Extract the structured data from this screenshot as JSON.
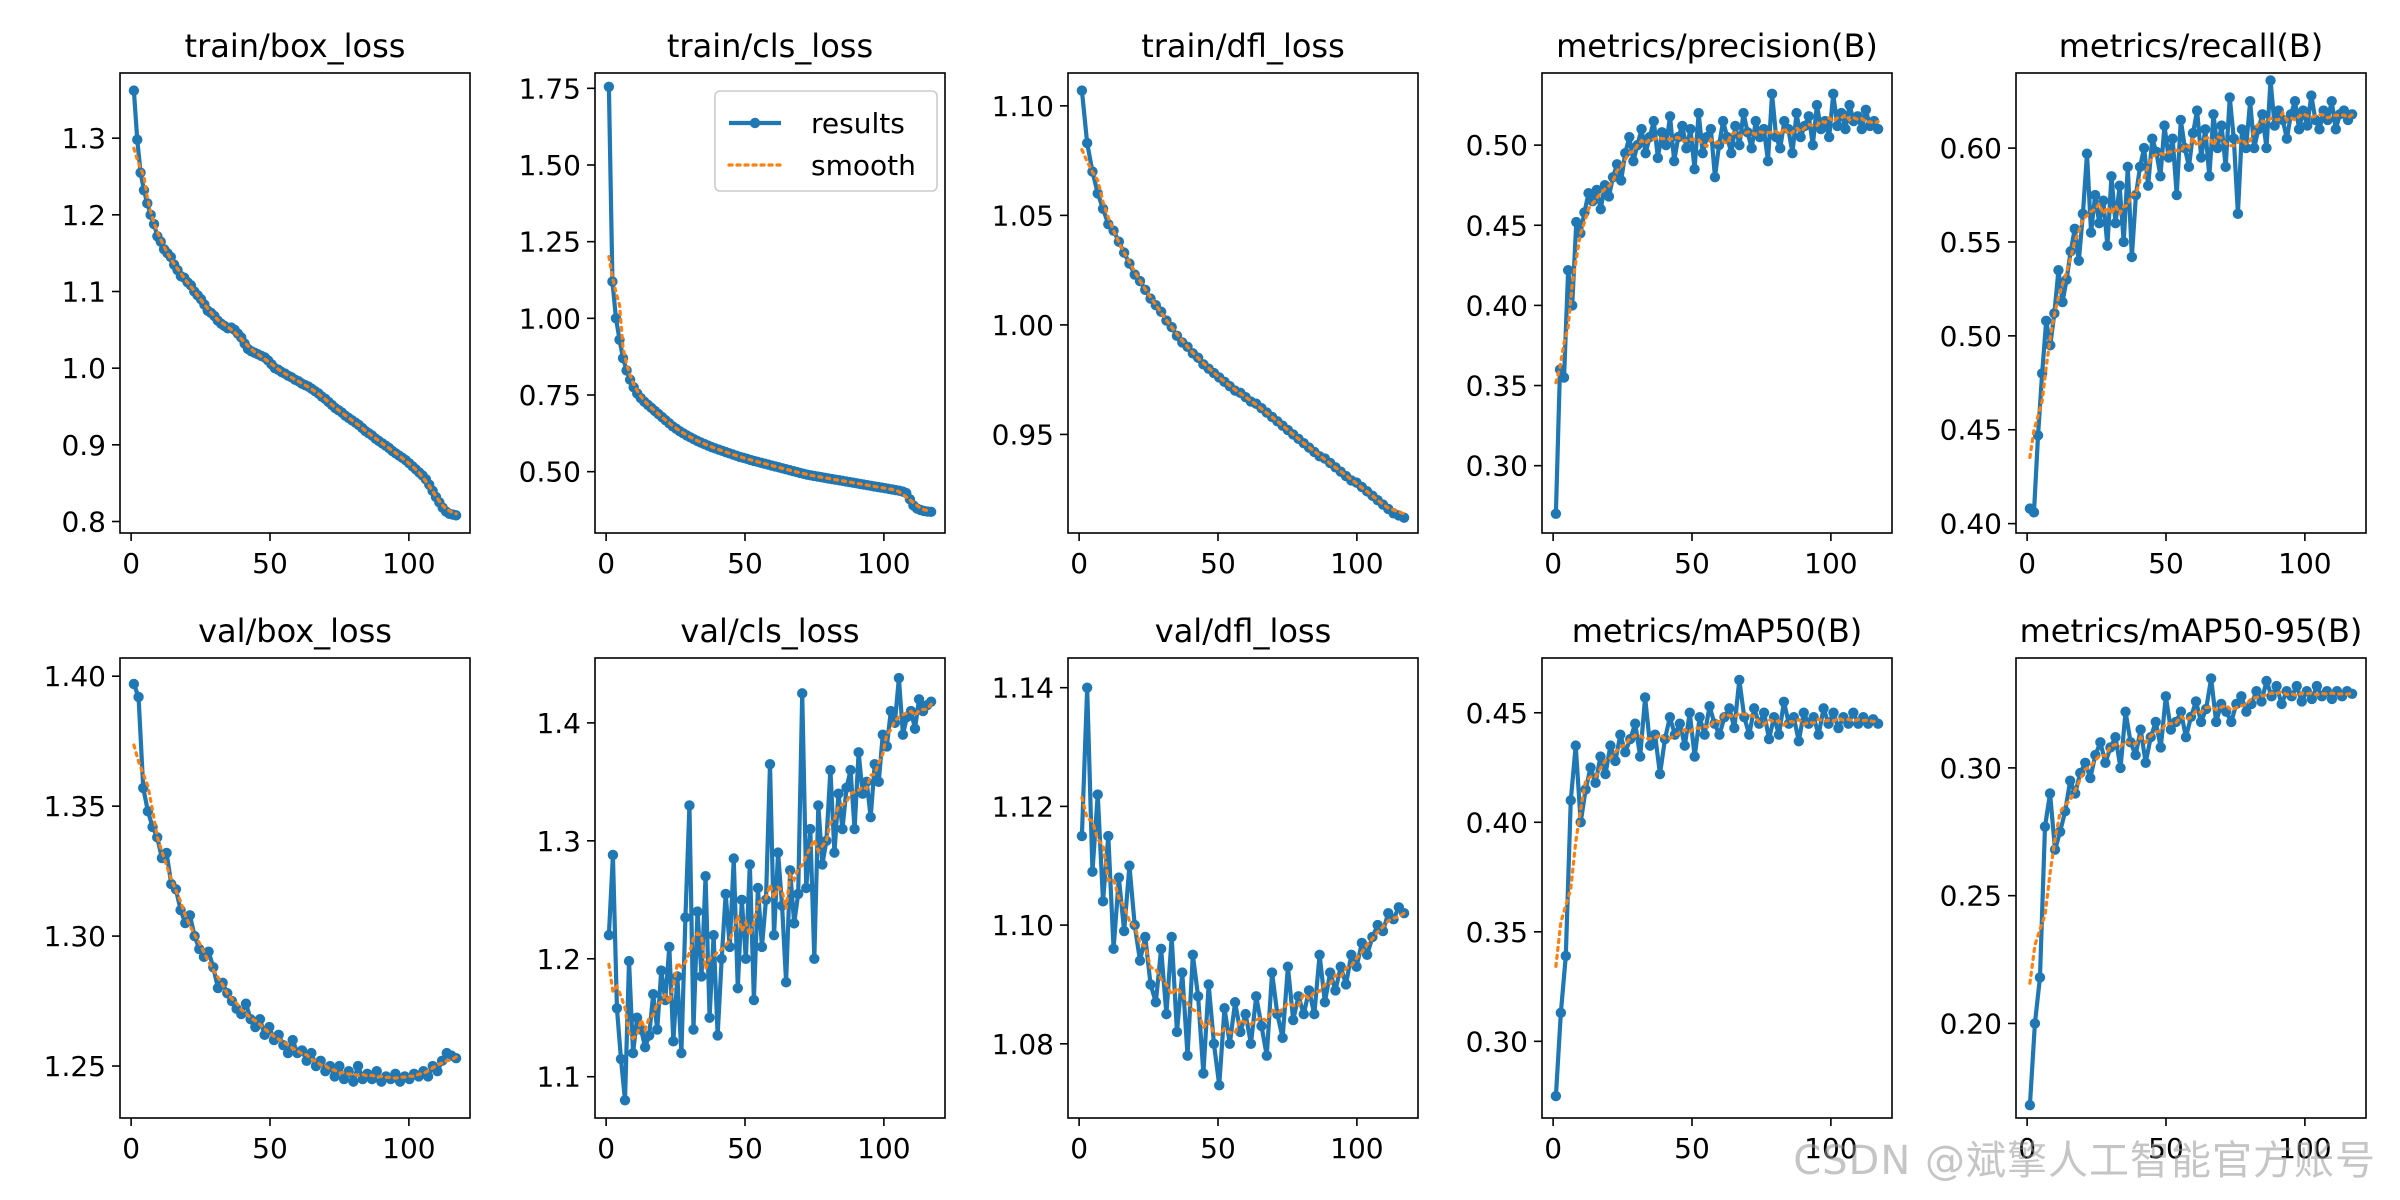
{
  "figure": {
    "watermark": "CSDN @斌擎人工智能官方账号",
    "legend": {
      "results_label": "results",
      "smooth_label": "smooth",
      "placement": "top-right (train/cls_loss)"
    },
    "colors": {
      "results": "#1f77b4",
      "smooth": "#ff7f0e",
      "axes": "#000000"
    }
  },
  "chart_data": [
    {
      "type": "line",
      "title": "train/box_loss",
      "xlim": [
        -4,
        122
      ],
      "ylim": [
        0.785,
        1.385
      ],
      "xticks": [
        0,
        50,
        100
      ],
      "yticks": [
        0.8,
        0.9,
        1.0,
        1.1,
        1.2,
        1.3
      ],
      "ytick_labels": [
        "0.8",
        "0.9",
        "1.0",
        "1.1",
        "1.2",
        "1.3"
      ],
      "x_last": 117,
      "series": [
        {
          "name": "results",
          "values": [
            1.362,
            1.298,
            1.255,
            1.232,
            1.215,
            1.2,
            1.188,
            1.172,
            1.165,
            1.155,
            1.15,
            1.145,
            1.135,
            1.128,
            1.12,
            1.118,
            1.112,
            1.108,
            1.1,
            1.095,
            1.09,
            1.083,
            1.075,
            1.072,
            1.068,
            1.062,
            1.058,
            1.055,
            1.052,
            1.053,
            1.05,
            1.045,
            1.04,
            1.032,
            1.025,
            1.022,
            1.02,
            1.018,
            1.016,
            1.014,
            1.01,
            1.005,
            1.0,
            0.998,
            0.995,
            0.993,
            0.99,
            0.988,
            0.985,
            0.983,
            0.98,
            0.978,
            0.976,
            0.973,
            0.97,
            0.967,
            0.963,
            0.96,
            0.956,
            0.952,
            0.948,
            0.945,
            0.942,
            0.938,
            0.935,
            0.932,
            0.929,
            0.926,
            0.922,
            0.918,
            0.915,
            0.912,
            0.908,
            0.905,
            0.902,
            0.899,
            0.896,
            0.892,
            0.889,
            0.886,
            0.883,
            0.88,
            0.876,
            0.872,
            0.868,
            0.864,
            0.86,
            0.855,
            0.848,
            0.84,
            0.832,
            0.825,
            0.818,
            0.813,
            0.81,
            0.809,
            0.808
          ]
        }
      ]
    },
    {
      "type": "line",
      "title": "train/cls_loss",
      "xlim": [
        -4,
        122
      ],
      "ylim": [
        0.3,
        1.8
      ],
      "xticks": [
        0,
        50,
        100
      ],
      "yticks": [
        0.5,
        0.75,
        1.0,
        1.25,
        1.5,
        1.75
      ],
      "ytick_labels": [
        "0.50",
        "0.75",
        "1.00",
        "1.25",
        "1.50",
        "1.75"
      ],
      "x_last": 117,
      "legend": true,
      "series": [
        {
          "name": "results",
          "values": [
            1.755,
            1.12,
            1.0,
            0.93,
            0.87,
            0.83,
            0.8,
            0.775,
            0.755,
            0.74,
            0.728,
            0.718,
            0.708,
            0.698,
            0.688,
            0.678,
            0.668,
            0.658,
            0.648,
            0.64,
            0.632,
            0.625,
            0.618,
            0.612,
            0.606,
            0.6,
            0.595,
            0.59,
            0.585,
            0.58,
            0.576,
            0.572,
            0.568,
            0.564,
            0.56,
            0.556,
            0.552,
            0.548,
            0.545,
            0.542,
            0.538,
            0.535,
            0.532,
            0.529,
            0.526,
            0.523,
            0.52,
            0.517,
            0.514,
            0.511,
            0.508,
            0.505,
            0.502,
            0.499,
            0.496,
            0.493,
            0.49,
            0.488,
            0.486,
            0.484,
            0.482,
            0.48,
            0.478,
            0.476,
            0.474,
            0.472,
            0.47,
            0.468,
            0.466,
            0.464,
            0.462,
            0.46,
            0.458,
            0.456,
            0.454,
            0.452,
            0.45,
            0.448,
            0.446,
            0.444,
            0.442,
            0.44,
            0.438,
            0.435,
            0.43,
            0.41,
            0.39,
            0.38,
            0.375,
            0.372,
            0.37,
            0.369
          ]
        }
      ]
    },
    {
      "type": "line",
      "title": "train/dfl_loss",
      "xlim": [
        -4,
        122
      ],
      "ylim": [
        0.905,
        1.115
      ],
      "xticks": [
        0,
        50,
        100
      ],
      "yticks": [
        0.95,
        1.0,
        1.05,
        1.1
      ],
      "ytick_labels": [
        "0.95",
        "1.00",
        "1.05",
        "1.10"
      ],
      "x_last": 117,
      "series": [
        {
          "name": "results",
          "values": [
            1.107,
            1.083,
            1.07,
            1.06,
            1.053,
            1.046,
            1.043,
            1.038,
            1.033,
            1.028,
            1.023,
            1.02,
            1.016,
            1.012,
            1.009,
            1.006,
            1.002,
            0.999,
            0.995,
            0.992,
            0.99,
            0.987,
            0.985,
            0.982,
            0.98,
            0.978,
            0.976,
            0.974,
            0.972,
            0.97,
            0.969,
            0.967,
            0.965,
            0.964,
            0.962,
            0.96,
            0.958,
            0.956,
            0.954,
            0.952,
            0.95,
            0.948,
            0.946,
            0.944,
            0.942,
            0.94,
            0.939,
            0.937,
            0.935,
            0.933,
            0.931,
            0.929,
            0.928,
            0.926,
            0.924,
            0.922,
            0.92,
            0.918,
            0.916,
            0.914,
            0.913,
            0.912
          ]
        }
      ]
    },
    {
      "type": "line",
      "title": "metrics/precision(B)",
      "xlim": [
        -4,
        122
      ],
      "ylim": [
        0.258,
        0.545
      ],
      "xticks": [
        0,
        50,
        100
      ],
      "yticks": [
        0.3,
        0.35,
        0.4,
        0.45,
        0.5
      ],
      "ytick_labels": [
        "0.30",
        "0.35",
        "0.40",
        "0.45",
        "0.50"
      ],
      "x_last": 117,
      "series": [
        {
          "name": "results",
          "values": [
            0.27,
            0.36,
            0.355,
            0.422,
            0.4,
            0.452,
            0.445,
            0.458,
            0.47,
            0.465,
            0.472,
            0.46,
            0.475,
            0.468,
            0.48,
            0.488,
            0.478,
            0.495,
            0.505,
            0.49,
            0.5,
            0.51,
            0.495,
            0.505,
            0.515,
            0.492,
            0.508,
            0.5,
            0.518,
            0.49,
            0.505,
            0.512,
            0.498,
            0.51,
            0.485,
            0.52,
            0.495,
            0.505,
            0.51,
            0.48,
            0.5,
            0.515,
            0.505,
            0.495,
            0.512,
            0.5,
            0.52,
            0.508,
            0.498,
            0.515,
            0.505,
            0.51,
            0.49,
            0.532,
            0.505,
            0.498,
            0.515,
            0.51,
            0.495,
            0.52,
            0.505,
            0.512,
            0.518,
            0.5,
            0.525,
            0.51,
            0.515,
            0.505,
            0.532,
            0.512,
            0.52,
            0.51,
            0.525,
            0.515,
            0.518,
            0.51,
            0.522,
            0.512,
            0.515,
            0.51
          ]
        }
      ]
    },
    {
      "type": "line",
      "title": "metrics/recall(B)",
      "xlim": [
        -4,
        122
      ],
      "ylim": [
        0.395,
        0.64
      ],
      "xticks": [
        0,
        50,
        100
      ],
      "yticks": [
        0.4,
        0.45,
        0.5,
        0.55,
        0.6
      ],
      "ytick_labels": [
        "0.40",
        "0.45",
        "0.50",
        "0.55",
        "0.60"
      ],
      "x_last": 117,
      "series": [
        {
          "name": "results",
          "values": [
            0.408,
            0.406,
            0.447,
            0.48,
            0.508,
            0.495,
            0.512,
            0.535,
            0.518,
            0.53,
            0.545,
            0.557,
            0.54,
            0.565,
            0.597,
            0.555,
            0.575,
            0.56,
            0.572,
            0.548,
            0.585,
            0.56,
            0.58,
            0.55,
            0.59,
            0.542,
            0.575,
            0.59,
            0.6,
            0.58,
            0.605,
            0.598,
            0.585,
            0.612,
            0.595,
            0.605,
            0.575,
            0.615,
            0.6,
            0.59,
            0.608,
            0.62,
            0.595,
            0.61,
            0.585,
            0.618,
            0.6,
            0.612,
            0.59,
            0.627,
            0.605,
            0.565,
            0.61,
            0.6,
            0.625,
            0.6,
            0.61,
            0.618,
            0.6,
            0.636,
            0.612,
            0.62,
            0.615,
            0.605,
            0.618,
            0.625,
            0.61,
            0.62,
            0.612,
            0.628,
            0.615,
            0.61,
            0.62,
            0.615,
            0.625,
            0.61,
            0.618,
            0.62,
            0.615,
            0.618
          ]
        }
      ]
    },
    {
      "type": "line",
      "title": "val/box_loss",
      "xlim": [
        -4,
        122
      ],
      "ylim": [
        1.23,
        1.407
      ],
      "xticks": [
        0,
        50,
        100
      ],
      "yticks": [
        1.25,
        1.3,
        1.35,
        1.4
      ],
      "ytick_labels": [
        "1.25",
        "1.30",
        "1.35",
        "1.40"
      ],
      "x_last": 117,
      "series": [
        {
          "name": "results",
          "values": [
            1.397,
            1.392,
            1.357,
            1.348,
            1.342,
            1.338,
            1.33,
            1.332,
            1.32,
            1.318,
            1.31,
            1.305,
            1.308,
            1.3,
            1.295,
            1.292,
            1.294,
            1.288,
            1.28,
            1.282,
            1.278,
            1.275,
            1.272,
            1.27,
            1.274,
            1.268,
            1.265,
            1.268,
            1.262,
            1.265,
            1.26,
            1.262,
            1.258,
            1.255,
            1.26,
            1.255,
            1.256,
            1.252,
            1.255,
            1.25,
            1.252,
            1.248,
            1.25,
            1.246,
            1.25,
            1.245,
            1.248,
            1.244,
            1.25,
            1.245,
            1.247,
            1.245,
            1.248,
            1.244,
            1.246,
            1.245,
            1.247,
            1.244,
            1.246,
            1.245,
            1.247,
            1.246,
            1.248,
            1.246,
            1.25,
            1.248,
            1.252,
            1.255,
            1.254,
            1.253
          ]
        }
      ]
    },
    {
      "type": "line",
      "title": "val/cls_loss",
      "xlim": [
        -4,
        122
      ],
      "ylim": [
        1.065,
        1.455
      ],
      "xticks": [
        0,
        50,
        100
      ],
      "yticks": [
        1.1,
        1.2,
        1.3,
        1.4
      ],
      "ytick_labels": [
        "1.1",
        "1.2",
        "1.3",
        "1.4"
      ],
      "x_last": 117,
      "series": [
        {
          "name": "results",
          "values": [
            1.22,
            1.288,
            1.158,
            1.115,
            1.08,
            1.198,
            1.12,
            1.15,
            1.14,
            1.125,
            1.135,
            1.17,
            1.14,
            1.19,
            1.165,
            1.21,
            1.13,
            1.185,
            1.12,
            1.235,
            1.33,
            1.14,
            1.24,
            1.185,
            1.27,
            1.15,
            1.22,
            1.135,
            1.2,
            1.255,
            1.21,
            1.285,
            1.175,
            1.25,
            1.2,
            1.28,
            1.165,
            1.26,
            1.21,
            1.25,
            1.365,
            1.22,
            1.29,
            1.245,
            1.18,
            1.275,
            1.23,
            1.255,
            1.425,
            1.26,
            1.31,
            1.2,
            1.33,
            1.28,
            1.3,
            1.36,
            1.29,
            1.34,
            1.31,
            1.345,
            1.36,
            1.31,
            1.375,
            1.34,
            1.35,
            1.32,
            1.365,
            1.35,
            1.39,
            1.38,
            1.41,
            1.4,
            1.438,
            1.39,
            1.405,
            1.41,
            1.395,
            1.42,
            1.41,
            1.415,
            1.418
          ]
        }
      ]
    },
    {
      "type": "line",
      "title": "val/dfl_loss",
      "xlim": [
        -4,
        122
      ],
      "ylim": [
        1.0675,
        1.145
      ],
      "xticks": [
        0,
        50,
        100
      ],
      "yticks": [
        1.08,
        1.1,
        1.12,
        1.14
      ],
      "ytick_labels": [
        "1.08",
        "1.10",
        "1.12",
        "1.14"
      ],
      "x_last": 117,
      "series": [
        {
          "name": "results",
          "values": [
            1.115,
            1.14,
            1.109,
            1.122,
            1.104,
            1.115,
            1.096,
            1.108,
            1.099,
            1.11,
            1.1,
            1.094,
            1.098,
            1.09,
            1.087,
            1.096,
            1.085,
            1.098,
            1.082,
            1.092,
            1.078,
            1.095,
            1.088,
            1.075,
            1.09,
            1.08,
            1.073,
            1.086,
            1.08,
            1.087,
            1.082,
            1.085,
            1.08,
            1.088,
            1.083,
            1.078,
            1.092,
            1.085,
            1.081,
            1.093,
            1.084,
            1.088,
            1.085,
            1.089,
            1.085,
            1.095,
            1.087,
            1.092,
            1.089,
            1.093,
            1.09,
            1.095,
            1.093,
            1.097,
            1.095,
            1.098,
            1.1,
            1.099,
            1.102,
            1.101,
            1.103,
            1.102
          ]
        }
      ]
    },
    {
      "type": "line",
      "title": "metrics/mAP50(B)",
      "xlim": [
        -4,
        122
      ],
      "ylim": [
        0.265,
        0.475
      ],
      "xticks": [
        0,
        50,
        100
      ],
      "yticks": [
        0.3,
        0.35,
        0.4,
        0.45
      ],
      "ytick_labels": [
        "0.30",
        "0.35",
        "0.40",
        "0.45"
      ],
      "x_last": 117,
      "series": [
        {
          "name": "results",
          "values": [
            0.275,
            0.313,
            0.339,
            0.41,
            0.435,
            0.4,
            0.415,
            0.425,
            0.418,
            0.43,
            0.422,
            0.435,
            0.428,
            0.44,
            0.432,
            0.438,
            0.445,
            0.43,
            0.457,
            0.435,
            0.44,
            0.422,
            0.438,
            0.448,
            0.44,
            0.445,
            0.435,
            0.45,
            0.43,
            0.448,
            0.44,
            0.453,
            0.445,
            0.44,
            0.448,
            0.452,
            0.443,
            0.465,
            0.448,
            0.44,
            0.452,
            0.445,
            0.45,
            0.438,
            0.448,
            0.44,
            0.455,
            0.445,
            0.448,
            0.437,
            0.45,
            0.445,
            0.448,
            0.44,
            0.452,
            0.445,
            0.45,
            0.443,
            0.448,
            0.445,
            0.45,
            0.445,
            0.448,
            0.445,
            0.447,
            0.445
          ]
        }
      ]
    },
    {
      "type": "line",
      "title": "metrics/mAP50-95(B)",
      "xlim": [
        -4,
        122
      ],
      "ylim": [
        0.163,
        0.343
      ],
      "xticks": [
        0,
        50,
        100
      ],
      "yticks": [
        0.2,
        0.25,
        0.3
      ],
      "ytick_labels": [
        "0.20",
        "0.25",
        "0.30"
      ],
      "x_last": 117,
      "series": [
        {
          "name": "results",
          "values": [
            0.168,
            0.2,
            0.218,
            0.277,
            0.29,
            0.268,
            0.275,
            0.283,
            0.295,
            0.29,
            0.298,
            0.302,
            0.296,
            0.305,
            0.31,
            0.302,
            0.308,
            0.312,
            0.3,
            0.322,
            0.31,
            0.305,
            0.315,
            0.302,
            0.312,
            0.318,
            0.308,
            0.328,
            0.315,
            0.318,
            0.322,
            0.312,
            0.32,
            0.326,
            0.318,
            0.323,
            0.335,
            0.318,
            0.325,
            0.322,
            0.318,
            0.325,
            0.328,
            0.322,
            0.325,
            0.33,
            0.326,
            0.334,
            0.328,
            0.332,
            0.325,
            0.33,
            0.328,
            0.332,
            0.326,
            0.33,
            0.327,
            0.332,
            0.328,
            0.33,
            0.327,
            0.33,
            0.328,
            0.33,
            0.329
          ]
        }
      ]
    }
  ]
}
